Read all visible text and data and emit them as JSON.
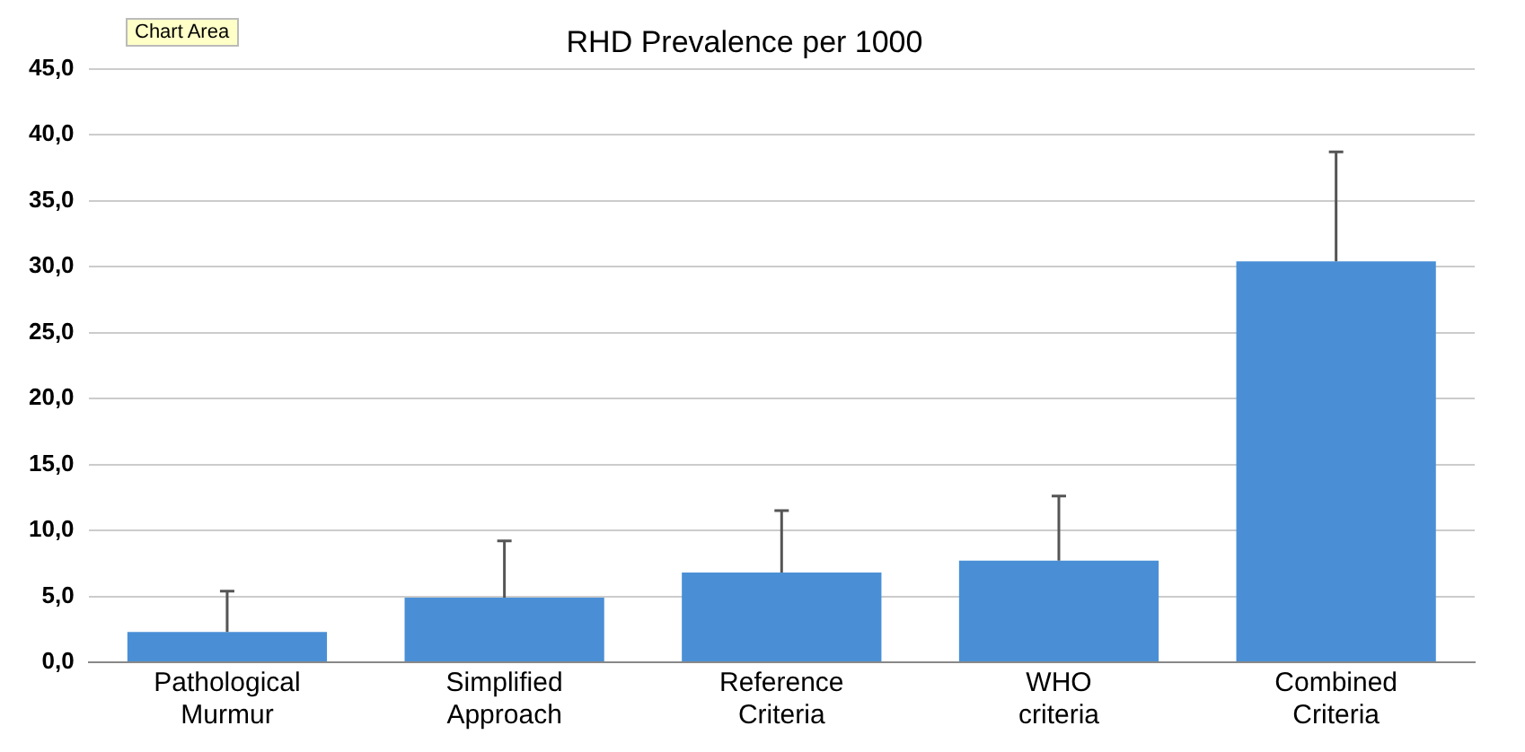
{
  "chart_data": {
    "type": "bar",
    "title": "RHD Prevalence per 1000",
    "categories": [
      "Pathological Murmur",
      "Simplified Approach",
      "Reference Criteria",
      "WHO criteria",
      "Combined Criteria"
    ],
    "values": [
      2.3,
      4.9,
      6.8,
      7.7,
      30.4
    ],
    "errors": [
      [
        2.3,
        5.4
      ],
      [
        4.9,
        9.2
      ],
      [
        6.8,
        11.5
      ],
      [
        7.7,
        12.6
      ],
      [
        30.4,
        38.7
      ]
    ],
    "color": "#4a8fd6",
    "ylim": [
      0,
      45
    ],
    "yticks": [
      {
        "value": 0,
        "label": "0,0"
      },
      {
        "value": 5,
        "label": "5,0"
      },
      {
        "value": 10,
        "label": "10,0"
      },
      {
        "value": 15,
        "label": "15,0"
      },
      {
        "value": 20,
        "label": "20,0"
      },
      {
        "value": 25,
        "label": "25,0"
      },
      {
        "value": 30,
        "label": "30,0"
      },
      {
        "value": 35,
        "label": "35,0"
      },
      {
        "value": 40,
        "label": "40,0"
      },
      {
        "value": 45,
        "label": "45,0"
      }
    ],
    "grid": "y",
    "legend": false,
    "annotations": [
      "Chart Area"
    ]
  }
}
